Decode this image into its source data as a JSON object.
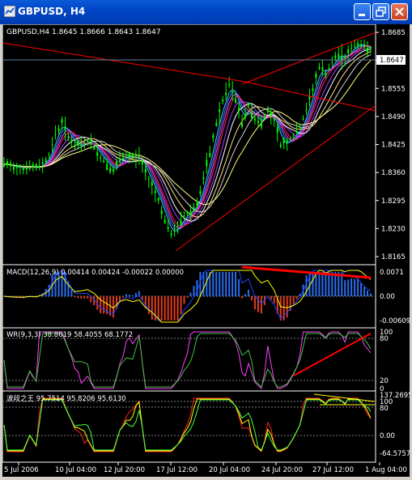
{
  "window": {
    "title": "GBPUSD, H4",
    "buttons": [
      "minimize-icon",
      "restore-icon",
      "close-icon"
    ]
  },
  "colors": {
    "background": "#000000",
    "candles": "#00ff00",
    "trendlines": "#ff0000",
    "grid": "#7f7f7f",
    "macd_hist_up": "#2a6df0",
    "macd_hist_down": "#e03c1e",
    "macd_signal": "#ffff00"
  },
  "main_chart": {
    "header": "GBPUSD,H4  1.8645 1.8666 1.8643 1.8647",
    "current_price_label": "1.8647",
    "y_ticks": [
      "1.8685",
      "1.8620",
      "1.8555",
      "1.8490",
      "1.8425",
      "1.8360",
      "1.8295",
      "1.8230",
      "1.8165"
    ]
  },
  "macd": {
    "header": "MACD(12,26,9) 0.00414 0.00424 -0.00022 0.00000",
    "y_ticks": [
      "0.0071",
      "0.00",
      "-0.00609"
    ]
  },
  "wr": {
    "header": "WR(9,3,3) 38.8619 58.4055 68.1772",
    "y_ticks": [
      "100",
      "80",
      "20",
      "0"
    ]
  },
  "osc": {
    "header": "波段之王 95.7514 95.8206 95.6130",
    "y_ticks": [
      "137.2695",
      "100",
      "80",
      "0.00",
      "-64.5757"
    ]
  },
  "x_axis": {
    "labels": [
      "5 Jul 2006",
      "10 Jul 04:00",
      "12 Jul 20:00",
      "17 Jul 12:00",
      "20 Jul 04:00",
      "24 Jul 20:00",
      "27 Jul 12:00",
      "1 Aug 04:00"
    ]
  },
  "chart_data": {
    "type": "candlestick",
    "symbol": "GBPUSD",
    "timeframe": "H4",
    "ohlc_last": {
      "open": 1.8645,
      "high": 1.8666,
      "low": 1.8643,
      "close": 1.8647
    },
    "y_range": [
      1.8165,
      1.8685
    ],
    "close_path": [
      [
        0,
        1.838
      ],
      [
        2,
        1.8375
      ],
      [
        4,
        1.8372
      ],
      [
        6,
        1.837
      ],
      [
        8,
        1.8373
      ],
      [
        10,
        1.8371
      ],
      [
        12,
        1.838
      ],
      [
        14,
        1.84
      ],
      [
        16,
        1.845
      ],
      [
        18,
        1.8475
      ],
      [
        20,
        1.8445
      ],
      [
        22,
        1.842
      ],
      [
        24,
        1.8425
      ],
      [
        26,
        1.8432
      ],
      [
        28,
        1.842
      ],
      [
        30,
        1.8395
      ],
      [
        32,
        1.838
      ],
      [
        34,
        1.8362
      ],
      [
        36,
        1.839
      ],
      [
        38,
        1.84
      ],
      [
        40,
        1.8392
      ],
      [
        42,
        1.8398
      ],
      [
        44,
        1.836
      ],
      [
        46,
        1.833
      ],
      [
        48,
        1.8295
      ],
      [
        50,
        1.825
      ],
      [
        52,
        1.8215
      ],
      [
        54,
        1.8235
      ],
      [
        56,
        1.826
      ],
      [
        58,
        1.827
      ],
      [
        60,
        1.829
      ],
      [
        62,
        1.8345
      ],
      [
        64,
        1.8405
      ],
      [
        66,
        1.8475
      ],
      [
        68,
        1.8525
      ],
      [
        70,
        1.8565
      ],
      [
        72,
        1.853
      ],
      [
        74,
        1.8475
      ],
      [
        76,
        1.8515
      ],
      [
        78,
        1.8485
      ],
      [
        80,
        1.8475
      ],
      [
        82,
        1.8505
      ],
      [
        84,
        1.848
      ],
      [
        86,
        1.8425
      ],
      [
        88,
        1.843
      ],
      [
        90,
        1.8445
      ],
      [
        92,
        1.8465
      ],
      [
        94,
        1.8505
      ],
      [
        96,
        1.8555
      ],
      [
        98,
        1.8605
      ],
      [
        100,
        1.859
      ],
      [
        102,
        1.8615
      ],
      [
        104,
        1.8635
      ],
      [
        106,
        1.8625
      ],
      [
        108,
        1.8648
      ],
      [
        110,
        1.866
      ],
      [
        112,
        1.8652
      ],
      [
        114,
        1.8647
      ]
    ]
  }
}
